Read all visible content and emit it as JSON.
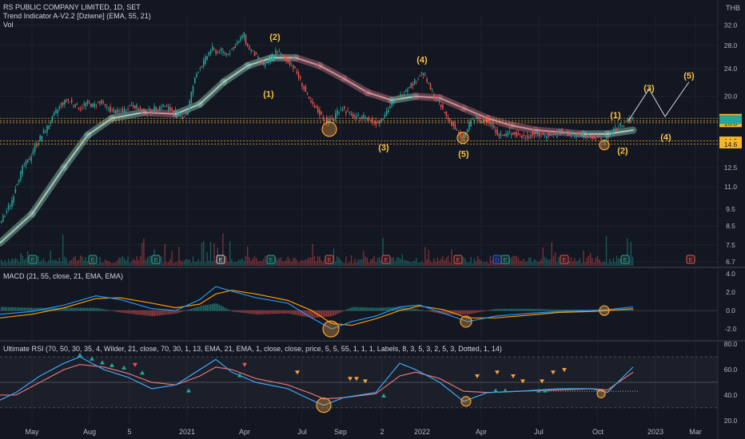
{
  "header": {
    "symbol_line": "RS PUBLIC COMPANY LIMITED, 1D, SET",
    "indicator_line": "Trend Indicator A-V2.2 [Dziwne] (EMA, 55, 21)",
    "vol_line": "Vol",
    "currency": "THB"
  },
  "macd_legend": "MACD (21, 55, close, 21, EMA, EMA)",
  "rsi_legend": "Ultimate RSI (70, 50, 30, 35, 4, Wilder, 21, close, 70, 30, 1, 13, EMA, 21, EMA, 1, close, close, price, 5, 5, 55, 1, 1, 1, Labels, 8, 3, 5, 3, 2, 5, 3, Dotted, 1, 14)",
  "colors": {
    "bg": "#131722",
    "up": "#26a69a",
    "down": "#ef5350",
    "grid": "#1e222d",
    "axis_text": "#b2b5be",
    "wave_label": "#f6c142",
    "circle": "#f7a23b",
    "price_tag": "#f7b526"
  },
  "chart_data": [
    {
      "type": "candlestick",
      "name": "price",
      "y_ticks": [
        "32.0",
        "28.0",
        "24.0",
        "20.0",
        "17.3",
        "17.0",
        "16.8",
        "14.9",
        "14.6",
        "12.5",
        "11.0",
        "9.5",
        "8.5",
        "7.5",
        "6.7"
      ],
      "y_scale": "log",
      "ylim": [
        6.5,
        34
      ],
      "x_tick_labels": [
        "May",
        "Aug",
        "5",
        "2021",
        "Apr",
        "Jul",
        "Sep",
        "2",
        "2022",
        "Apr",
        "Jul",
        "Oct",
        "2023",
        "Mar"
      ],
      "price_tags": [
        {
          "label": "17.3",
          "price": 17.3
        },
        {
          "label": "17.0",
          "price": 17.0
        },
        {
          "label": "16.8",
          "price": 16.8
        },
        {
          "label": "14.9",
          "price": 14.9
        },
        {
          "label": "14.6",
          "price": 14.6
        }
      ],
      "path": [
        [
          0,
          8.5
        ],
        [
          8,
          9.2
        ],
        [
          16,
          10.0
        ],
        [
          22,
          11.2
        ],
        [
          30,
          12.5
        ],
        [
          38,
          13.2
        ],
        [
          46,
          14.5
        ],
        [
          54,
          15.5
        ],
        [
          62,
          16.5
        ],
        [
          70,
          17.8
        ],
        [
          78,
          19.0
        ],
        [
          86,
          19.5
        ],
        [
          94,
          19.0
        ],
        [
          102,
          18.5
        ],
        [
          110,
          19.2
        ],
        [
          118,
          18.8
        ],
        [
          126,
          19.3
        ],
        [
          134,
          18.6
        ],
        [
          142,
          18.2
        ],
        [
          150,
          18.0
        ],
        [
          158,
          18.3
        ],
        [
          166,
          19.0
        ],
        [
          174,
          18.5
        ],
        [
          182,
          18.0
        ],
        [
          190,
          18.2
        ],
        [
          198,
          18.6
        ],
        [
          206,
          18.8
        ],
        [
          214,
          18.4
        ],
        [
          222,
          18.0
        ],
        [
          230,
          17.5
        ],
        [
          236,
          18.0
        ],
        [
          242,
          21.0
        ],
        [
          248,
          23.5
        ],
        [
          254,
          24.5
        ],
        [
          260,
          26.0
        ],
        [
          266,
          27.5
        ],
        [
          272,
          26.8
        ],
        [
          278,
          27.0
        ],
        [
          284,
          26.5
        ],
        [
          290,
          27.0
        ],
        [
          296,
          28.0
        ],
        [
          302,
          29.0
        ],
        [
          306,
          30.5
        ],
        [
          310,
          28.0
        ],
        [
          316,
          27.0
        ],
        [
          322,
          26.0
        ],
        [
          328,
          25.0
        ],
        [
          334,
          24.5
        ],
        [
          340,
          25.5
        ],
        [
          346,
          27.0
        ],
        [
          352,
          26.5
        ],
        [
          358,
          25.5
        ],
        [
          364,
          25.0
        ],
        [
          370,
          24.0
        ],
        [
          376,
          22.5
        ],
        [
          382,
          21.0
        ],
        [
          388,
          19.5
        ],
        [
          394,
          18.6
        ],
        [
          400,
          18.0
        ],
        [
          406,
          17.3
        ],
        [
          412,
          17.0
        ],
        [
          418,
          17.2
        ],
        [
          424,
          18.3
        ],
        [
          430,
          18.5
        ],
        [
          436,
          18.0
        ],
        [
          442,
          17.6
        ],
        [
          448,
          17.3
        ],
        [
          454,
          17.6
        ],
        [
          460,
          17.4
        ],
        [
          466,
          17.0
        ],
        [
          472,
          16.8
        ],
        [
          478,
          17.2
        ],
        [
          484,
          18.0
        ],
        [
          490,
          18.8
        ],
        [
          496,
          19.5
        ],
        [
          502,
          20.0
        ],
        [
          508,
          20.8
        ],
        [
          514,
          21.5
        ],
        [
          520,
          22.0
        ],
        [
          526,
          22.8
        ],
        [
          530,
          23.5
        ],
        [
          536,
          22.0
        ],
        [
          542,
          20.5
        ],
        [
          548,
          19.5
        ],
        [
          554,
          18.5
        ],
        [
          560,
          17.5
        ],
        [
          566,
          16.8
        ],
        [
          572,
          16.0
        ],
        [
          578,
          15.2
        ],
        [
          584,
          15.6
        ],
        [
          590,
          17.0
        ],
        [
          596,
          17.3
        ],
        [
          602,
          16.9
        ],
        [
          608,
          17.2
        ],
        [
          614,
          16.8
        ],
        [
          620,
          16.2
        ],
        [
          626,
          15.5
        ],
        [
          632,
          15.4
        ],
        [
          640,
          15.8
        ],
        [
          648,
          15.5
        ],
        [
          656,
          15.3
        ],
        [
          664,
          15.5
        ],
        [
          672,
          15.6
        ],
        [
          680,
          15.4
        ],
        [
          688,
          15.6
        ],
        [
          696,
          15.5
        ],
        [
          704,
          15.8
        ],
        [
          712,
          15.6
        ],
        [
          720,
          15.5
        ],
        [
          728,
          15.6
        ],
        [
          736,
          15.4
        ],
        [
          744,
          15.3
        ],
        [
          750,
          15.1
        ],
        [
          756,
          14.9
        ],
        [
          762,
          15.3
        ],
        [
          768,
          15.8
        ],
        [
          774,
          16.3
        ],
        [
          780,
          16.6
        ],
        [
          786,
          17.0
        ],
        [
          792,
          17.3
        ]
      ],
      "trend_band": [
        [
          0,
          7.6
        ],
        [
          40,
          9.2
        ],
        [
          80,
          12.5
        ],
        [
          110,
          15.5
        ],
        [
          140,
          17.3
        ],
        [
          180,
          18.0
        ],
        [
          220,
          17.8
        ],
        [
          250,
          19.0
        ],
        [
          280,
          22.0
        ],
        [
          310,
          24.5
        ],
        [
          340,
          25.8
        ],
        [
          370,
          25.8
        ],
        [
          400,
          24.5
        ],
        [
          430,
          22.5
        ],
        [
          460,
          20.5
        ],
        [
          490,
          19.5
        ],
        [
          520,
          20.0
        ],
        [
          550,
          19.8
        ],
        [
          580,
          18.5
        ],
        [
          610,
          17.3
        ],
        [
          640,
          16.5
        ],
        [
          670,
          16.0
        ],
        [
          700,
          15.8
        ],
        [
          730,
          15.6
        ],
        [
          760,
          15.6
        ],
        [
          792,
          16.0
        ]
      ],
      "projection": [
        [
          786,
          17.0
        ],
        [
          812,
          21.0
        ],
        [
          832,
          17.5
        ],
        [
          862,
          22.0
        ]
      ],
      "wave_labels": [
        {
          "label": "(1)",
          "x": 336,
          "price": 19.9
        },
        {
          "label": "(2)",
          "x": 344,
          "price": 29.0
        },
        {
          "label": "(3)",
          "x": 480,
          "price": 14.0
        },
        {
          "label": "(4)",
          "x": 528,
          "price": 25.0
        },
        {
          "label": "(5)",
          "x": 580,
          "price": 13.4
        },
        {
          "label": "(1)",
          "x": 770,
          "price": 17.3
        },
        {
          "label": "(2)",
          "x": 779,
          "price": 13.7
        },
        {
          "label": "(3)",
          "x": 812,
          "price": 20.7
        },
        {
          "label": "(4)",
          "x": 833,
          "price": 15.0
        },
        {
          "label": "(5)",
          "x": 862,
          "price": 22.5
        }
      ],
      "circles": [
        {
          "x": 412,
          "price": 16.1,
          "r": 9
        },
        {
          "x": 579,
          "price": 15.2,
          "r": 7
        },
        {
          "x": 756,
          "price": 14.5,
          "r": 6
        }
      ],
      "event_markers": [
        {
          "label": "E",
          "x": 41,
          "kind": "earnings"
        },
        {
          "label": "E",
          "x": 116,
          "kind": "earnings"
        },
        {
          "label": "E",
          "x": 195,
          "kind": "earnings"
        },
        {
          "label": "E",
          "x": 276,
          "kind": "split"
        },
        {
          "label": "E",
          "x": 339,
          "kind": "earnings"
        },
        {
          "label": "E",
          "x": 412,
          "kind": "dividend"
        },
        {
          "label": "E",
          "x": 483,
          "kind": "dividend"
        },
        {
          "label": "E",
          "x": 573,
          "kind": "dividend"
        },
        {
          "label": "D",
          "x": 622,
          "kind": "d"
        },
        {
          "label": "E",
          "x": 632,
          "kind": "earnings"
        },
        {
          "label": "E",
          "x": 706,
          "kind": "dividend"
        },
        {
          "label": "E",
          "x": 782,
          "kind": "earnings"
        },
        {
          "label": "E",
          "x": 864,
          "kind": "dividend"
        }
      ]
    },
    {
      "type": "line",
      "name": "macd",
      "y_ticks": [
        "4.0",
        "2.0",
        "0.0",
        "-2.0"
      ],
      "ylim": [
        -3.2,
        4.6
      ],
      "series_macd": [
        [
          0,
          -0.4
        ],
        [
          40,
          -0.1
        ],
        [
          80,
          0.6
        ],
        [
          120,
          1.6
        ],
        [
          150,
          1.2
        ],
        [
          190,
          0.2
        ],
        [
          220,
          0.0
        ],
        [
          250,
          1.2
        ],
        [
          270,
          2.6
        ],
        [
          290,
          2.1
        ],
        [
          320,
          1.4
        ],
        [
          360,
          0.8
        ],
        [
          390,
          -0.8
        ],
        [
          415,
          -2.0
        ],
        [
          440,
          -1.2
        ],
        [
          470,
          -0.6
        ],
        [
          500,
          0.4
        ],
        [
          525,
          0.6
        ],
        [
          555,
          -0.3
        ],
        [
          585,
          -1.2
        ],
        [
          620,
          -0.6
        ],
        [
          660,
          -0.3
        ],
        [
          700,
          -0.1
        ],
        [
          740,
          0.0
        ],
        [
          760,
          0.1
        ],
        [
          792,
          0.4
        ]
      ],
      "series_signal": [
        [
          0,
          -0.8
        ],
        [
          40,
          -0.4
        ],
        [
          80,
          0.3
        ],
        [
          120,
          1.3
        ],
        [
          150,
          1.4
        ],
        [
          190,
          0.8
        ],
        [
          220,
          0.3
        ],
        [
          250,
          0.7
        ],
        [
          270,
          1.8
        ],
        [
          290,
          2.2
        ],
        [
          320,
          1.8
        ],
        [
          360,
          1.1
        ],
        [
          390,
          0.0
        ],
        [
          415,
          -1.4
        ],
        [
          440,
          -1.6
        ],
        [
          470,
          -0.9
        ],
        [
          500,
          0.0
        ],
        [
          525,
          0.5
        ],
        [
          555,
          0.1
        ],
        [
          585,
          -0.8
        ],
        [
          620,
          -0.8
        ],
        [
          660,
          -0.5
        ],
        [
          700,
          -0.2
        ],
        [
          740,
          -0.1
        ],
        [
          760,
          0.0
        ],
        [
          792,
          0.2
        ]
      ],
      "circles": [
        {
          "x": 414,
          "value": -2.0,
          "r": 10
        },
        {
          "x": 583,
          "value": -1.2,
          "r": 7
        },
        {
          "x": 756,
          "value": 0.0,
          "r": 6
        }
      ]
    },
    {
      "type": "line",
      "name": "rsi",
      "y_ticks": [
        "80.0",
        "60.0",
        "40.0",
        "20.0"
      ],
      "ylim": [
        18,
        82
      ],
      "levels": [
        70,
        50,
        30
      ],
      "series_rsi": [
        [
          0,
          36
        ],
        [
          20,
          42
        ],
        [
          50,
          55
        ],
        [
          80,
          65
        ],
        [
          100,
          70
        ],
        [
          130,
          60
        ],
        [
          160,
          54
        ],
        [
          190,
          45
        ],
        [
          220,
          48
        ],
        [
          250,
          60
        ],
        [
          270,
          68
        ],
        [
          290,
          58
        ],
        [
          320,
          50
        ],
        [
          360,
          45
        ],
        [
          390,
          36
        ],
        [
          405,
          32
        ],
        [
          430,
          38
        ],
        [
          470,
          42
        ],
        [
          500,
          65
        ],
        [
          520,
          60
        ],
        [
          550,
          50
        ],
        [
          580,
          35
        ],
        [
          610,
          42
        ],
        [
          650,
          43
        ],
        [
          700,
          45
        ],
        [
          740,
          45
        ],
        [
          760,
          42
        ],
        [
          792,
          62
        ]
      ],
      "series_signal": [
        [
          0,
          40
        ],
        [
          20,
          40
        ],
        [
          50,
          50
        ],
        [
          80,
          60
        ],
        [
          100,
          64
        ],
        [
          130,
          62
        ],
        [
          160,
          57
        ],
        [
          190,
          50
        ],
        [
          220,
          48
        ],
        [
          250,
          55
        ],
        [
          270,
          62
        ],
        [
          290,
          60
        ],
        [
          320,
          53
        ],
        [
          360,
          48
        ],
        [
          390,
          41
        ],
        [
          405,
          37
        ],
        [
          430,
          38
        ],
        [
          470,
          41
        ],
        [
          500,
          55
        ],
        [
          520,
          58
        ],
        [
          550,
          53
        ],
        [
          580,
          43
        ],
        [
          610,
          42
        ],
        [
          650,
          43
        ],
        [
          700,
          44
        ],
        [
          740,
          45
        ],
        [
          760,
          44
        ],
        [
          792,
          58
        ]
      ],
      "circles": [
        {
          "x": 405,
          "value": 32,
          "r": 9
        },
        {
          "x": 583,
          "value": 35,
          "r": 6
        },
        {
          "x": 752,
          "value": 41,
          "r": 5
        }
      ]
    }
  ]
}
